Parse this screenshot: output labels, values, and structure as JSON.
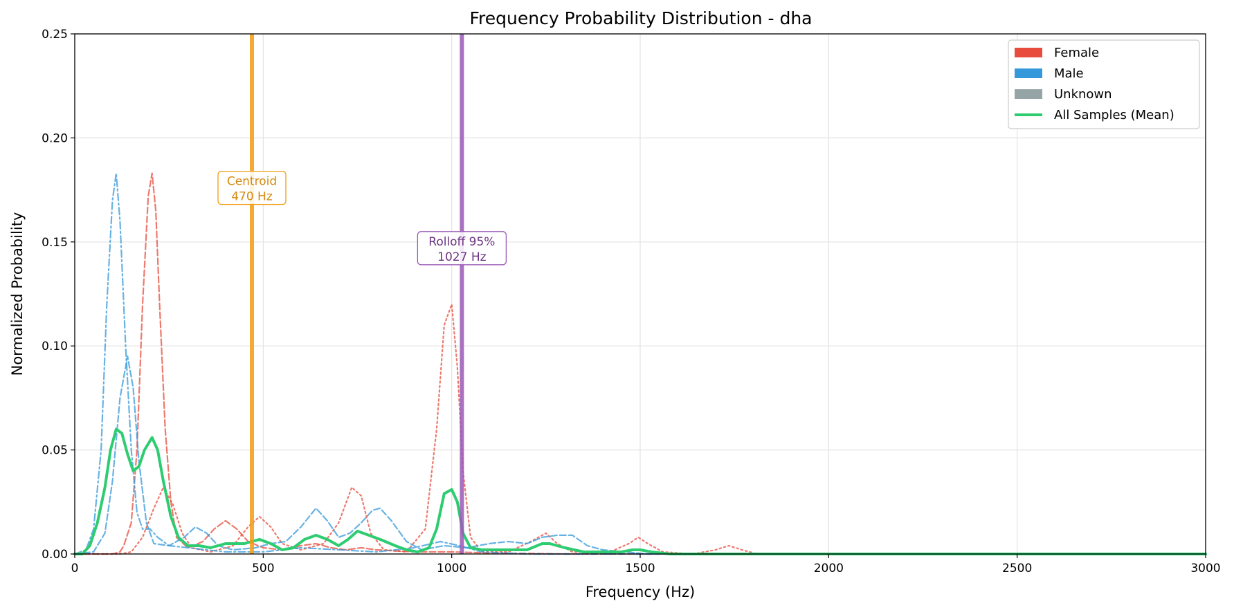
{
  "chart_data": {
    "type": "line",
    "title": "Frequency Probability Distribution - dha",
    "xlabel": "Frequency (Hz)",
    "ylabel": "Normalized Probability",
    "xlim": [
      0,
      3000
    ],
    "ylim": [
      0,
      0.25
    ],
    "xticks": [
      0,
      500,
      1000,
      1500,
      2000,
      2500,
      3000
    ],
    "xtick_labels": [
      "0",
      "500",
      "1000",
      "1500",
      "2000",
      "2500",
      "3000"
    ],
    "yticks": [
      0,
      0.05,
      0.1,
      0.15,
      0.2,
      0.25
    ],
    "ytick_labels": [
      "0.00",
      "0.05",
      "0.10",
      "0.15",
      "0.20",
      "0.25"
    ],
    "grid": true,
    "legend_position": "top-right",
    "legend": [
      {
        "label": "Female",
        "kind": "patch",
        "color": "#e74c3c"
      },
      {
        "label": "Male",
        "kind": "patch",
        "color": "#3498db"
      },
      {
        "label": "Unknown",
        "kind": "patch",
        "color": "#95a5a6"
      },
      {
        "label": "All Samples (Mean)",
        "kind": "line",
        "color": "#2ecc71"
      }
    ],
    "vlines": [
      {
        "x": 470,
        "color": "#f39c12",
        "label": "Centroid",
        "value_label": "470 Hz",
        "label_y": 0.176
      },
      {
        "x": 1027,
        "color": "#9b59b6",
        "label": "Rolloff 95%",
        "value_label": "1027 Hz",
        "label_y": 0.147
      }
    ],
    "series": [
      {
        "group": "Female",
        "color": "#e74c3c",
        "style": "dashed",
        "width": 2.2,
        "points": [
          [
            0,
            0
          ],
          [
            60,
            0
          ],
          [
            100,
            0
          ],
          [
            120,
            0.001
          ],
          [
            130,
            0.004
          ],
          [
            150,
            0.015
          ],
          [
            165,
            0.05
          ],
          [
            180,
            0.12
          ],
          [
            195,
            0.172
          ],
          [
            205,
            0.183
          ],
          [
            215,
            0.165
          ],
          [
            225,
            0.12
          ],
          [
            240,
            0.06
          ],
          [
            255,
            0.025
          ],
          [
            270,
            0.008
          ],
          [
            300,
            0.003
          ],
          [
            340,
            0.006
          ],
          [
            370,
            0.012
          ],
          [
            400,
            0.016
          ],
          [
            430,
            0.012
          ],
          [
            460,
            0.006
          ],
          [
            500,
            0.003
          ],
          [
            550,
            0.002
          ],
          [
            600,
            0.004
          ],
          [
            640,
            0.005
          ],
          [
            680,
            0.003
          ],
          [
            720,
            0.002
          ],
          [
            760,
            0.003
          ],
          [
            800,
            0.002
          ],
          [
            900,
            0.001
          ],
          [
            1000,
            0.001
          ],
          [
            1100,
            0.0005
          ],
          [
            1300,
            0
          ],
          [
            1700,
            0
          ],
          [
            3000,
            0
          ]
        ]
      },
      {
        "group": "Female",
        "color": "#e74c3c",
        "style": "dotted",
        "width": 2.2,
        "points": [
          [
            0,
            0
          ],
          [
            120,
            0
          ],
          [
            150,
            0.001
          ],
          [
            180,
            0.008
          ],
          [
            210,
            0.022
          ],
          [
            235,
            0.032
          ],
          [
            260,
            0.024
          ],
          [
            285,
            0.01
          ],
          [
            310,
            0.003
          ],
          [
            360,
            0.001
          ],
          [
            420,
            0.004
          ],
          [
            460,
            0.013
          ],
          [
            490,
            0.018
          ],
          [
            520,
            0.013
          ],
          [
            550,
            0.005
          ],
          [
            600,
            0.002
          ],
          [
            660,
            0.005
          ],
          [
            700,
            0.015
          ],
          [
            735,
            0.032
          ],
          [
            760,
            0.028
          ],
          [
            785,
            0.01
          ],
          [
            820,
            0.002
          ],
          [
            880,
            0.001
          ],
          [
            930,
            0.012
          ],
          [
            960,
            0.06
          ],
          [
            980,
            0.11
          ],
          [
            1000,
            0.12
          ],
          [
            1015,
            0.09
          ],
          [
            1030,
            0.04
          ],
          [
            1050,
            0.008
          ],
          [
            1080,
            0.001
          ],
          [
            1150,
            0.001
          ],
          [
            1210,
            0.006
          ],
          [
            1250,
            0.01
          ],
          [
            1280,
            0.005
          ],
          [
            1320,
            0.001
          ],
          [
            1420,
            0.001
          ],
          [
            1470,
            0.005
          ],
          [
            1495,
            0.008
          ],
          [
            1520,
            0.005
          ],
          [
            1560,
            0.001
          ],
          [
            1640,
            0
          ],
          [
            1700,
            0.002
          ],
          [
            1735,
            0.004
          ],
          [
            1770,
            0.002
          ],
          [
            1810,
            0
          ],
          [
            3000,
            0
          ]
        ]
      },
      {
        "group": "Male",
        "color": "#3498db",
        "style": "dashdot",
        "width": 2.2,
        "points": [
          [
            0,
            0
          ],
          [
            30,
            0.002
          ],
          [
            50,
            0.012
          ],
          [
            70,
            0.05
          ],
          [
            85,
            0.12
          ],
          [
            100,
            0.17
          ],
          [
            110,
            0.183
          ],
          [
            120,
            0.16
          ],
          [
            135,
            0.1
          ],
          [
            150,
            0.05
          ],
          [
            165,
            0.02
          ],
          [
            180,
            0.012
          ],
          [
            200,
            0.012
          ],
          [
            220,
            0.008
          ],
          [
            250,
            0.004
          ],
          [
            300,
            0.003
          ],
          [
            350,
            0.002
          ],
          [
            400,
            0.001
          ],
          [
            500,
            0.001
          ],
          [
            600,
            0.003
          ],
          [
            700,
            0.002
          ],
          [
            800,
            0.001
          ],
          [
            900,
            0.003
          ],
          [
            970,
            0.006
          ],
          [
            1020,
            0.004
          ],
          [
            1080,
            0.001
          ],
          [
            1200,
            0
          ],
          [
            3000,
            0
          ]
        ]
      },
      {
        "group": "Male",
        "color": "#3498db",
        "style": "dashed",
        "width": 2.2,
        "points": [
          [
            0,
            0
          ],
          [
            50,
            0.001
          ],
          [
            80,
            0.01
          ],
          [
            100,
            0.035
          ],
          [
            120,
            0.075
          ],
          [
            140,
            0.095
          ],
          [
            155,
            0.08
          ],
          [
            170,
            0.045
          ],
          [
            190,
            0.015
          ],
          [
            210,
            0.005
          ],
          [
            250,
            0.004
          ],
          [
            290,
            0.008
          ],
          [
            320,
            0.013
          ],
          [
            350,
            0.01
          ],
          [
            380,
            0.004
          ],
          [
            420,
            0.002
          ],
          [
            480,
            0.003
          ],
          [
            520,
            0.005
          ],
          [
            560,
            0.006
          ],
          [
            600,
            0.013
          ],
          [
            640,
            0.022
          ],
          [
            670,
            0.016
          ],
          [
            700,
            0.008
          ],
          [
            730,
            0.01
          ],
          [
            760,
            0.015
          ],
          [
            790,
            0.021
          ],
          [
            810,
            0.022
          ],
          [
            840,
            0.016
          ],
          [
            880,
            0.006
          ],
          [
            920,
            0.002
          ],
          [
            980,
            0.004
          ],
          [
            1040,
            0.003
          ],
          [
            1100,
            0.005
          ],
          [
            1150,
            0.006
          ],
          [
            1200,
            0.005
          ],
          [
            1240,
            0.008
          ],
          [
            1280,
            0.009
          ],
          [
            1320,
            0.009
          ],
          [
            1360,
            0.004
          ],
          [
            1400,
            0.002
          ],
          [
            1460,
            0.001
          ],
          [
            1520,
            0
          ],
          [
            3000,
            0
          ]
        ]
      },
      {
        "group": "All Samples (Mean)",
        "color": "#2ecc71",
        "style": "solid",
        "width": 4,
        "points": [
          [
            0,
            0
          ],
          [
            20,
            0
          ],
          [
            40,
            0.004
          ],
          [
            60,
            0.015
          ],
          [
            80,
            0.032
          ],
          [
            95,
            0.05
          ],
          [
            110,
            0.06
          ],
          [
            125,
            0.058
          ],
          [
            140,
            0.048
          ],
          [
            155,
            0.04
          ],
          [
            170,
            0.042
          ],
          [
            185,
            0.05
          ],
          [
            205,
            0.056
          ],
          [
            220,
            0.05
          ],
          [
            235,
            0.035
          ],
          [
            255,
            0.018
          ],
          [
            275,
            0.008
          ],
          [
            300,
            0.004
          ],
          [
            330,
            0.004
          ],
          [
            360,
            0.003
          ],
          [
            400,
            0.005
          ],
          [
            450,
            0.005
          ],
          [
            490,
            0.007
          ],
          [
            520,
            0.005
          ],
          [
            550,
            0.002
          ],
          [
            580,
            0.003
          ],
          [
            610,
            0.007
          ],
          [
            640,
            0.009
          ],
          [
            670,
            0.007
          ],
          [
            700,
            0.004
          ],
          [
            725,
            0.007
          ],
          [
            750,
            0.011
          ],
          [
            780,
            0.009
          ],
          [
            810,
            0.007
          ],
          [
            850,
            0.004
          ],
          [
            880,
            0.002
          ],
          [
            910,
            0.001
          ],
          [
            940,
            0.003
          ],
          [
            960,
            0.012
          ],
          [
            980,
            0.029
          ],
          [
            1000,
            0.031
          ],
          [
            1015,
            0.025
          ],
          [
            1030,
            0.01
          ],
          [
            1050,
            0.003
          ],
          [
            1080,
            0.002
          ],
          [
            1150,
            0.002
          ],
          [
            1200,
            0.002
          ],
          [
            1240,
            0.005
          ],
          [
            1260,
            0.005
          ],
          [
            1300,
            0.003
          ],
          [
            1350,
            0.001
          ],
          [
            1400,
            0.001
          ],
          [
            1450,
            0.001
          ],
          [
            1480,
            0.002
          ],
          [
            1500,
            0.002
          ],
          [
            1530,
            0.001
          ],
          [
            1580,
            0
          ],
          [
            3000,
            0
          ]
        ]
      }
    ]
  }
}
